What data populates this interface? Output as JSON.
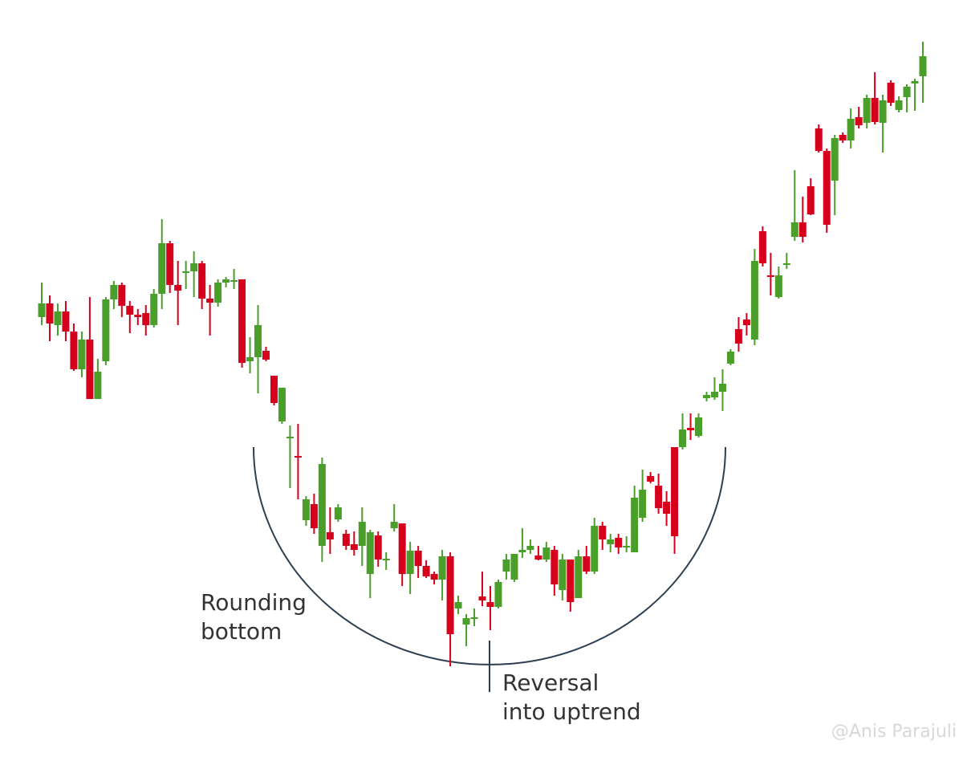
{
  "chart_data": {
    "type": "candlestick",
    "up_color": "#4a9e2a",
    "down_color": "#d6001c",
    "ylim": [
      0,
      938
    ],
    "open": [
      543,
      560,
      533,
      550,
      525,
      478,
      515,
      441,
      488,
      565,
      583,
      557,
      546,
      548,
      533,
      572,
      635,
      583,
      598,
      600,
      610,
      566,
      561,
      586,
      588,
      590,
      488,
      493,
      501,
      470,
      413,
      393,
      370,
      290,
      310,
      258,
      275,
      291,
      273,
      260,
      258,
      223,
      271,
      241,
      280,
      286,
      223,
      252,
      233,
      223,
      216,
      245,
      180,
      160,
      168,
      195,
      188,
      182,
      226,
      216,
      250,
      253,
      246,
      241,
      253,
      203,
      241,
      193,
      245,
      226,
      283,
      260,
      268,
      256,
      250,
      293,
      345,
      333,
      313,
      381,
      381,
      405,
      395,
      442,
      443,
      450,
      485,
      528,
      540,
      515,
      650,
      595,
      568,
      608,
      643,
      661,
      706,
      778,
      750,
      713,
      770,
      763,
      792,
      785,
      816,
      785,
      835,
      801,
      817,
      834,
      843
    ],
    "high": [
      586,
      570,
      560,
      563,
      535,
      525,
      568,
      491,
      568,
      588,
      586,
      563,
      553,
      558,
      578,
      665,
      638,
      613,
      613,
      625,
      613,
      583,
      590,
      593,
      603,
      590,
      518,
      558,
      506,
      470,
      455,
      408,
      410,
      320,
      323,
      368,
      306,
      310,
      278,
      276,
      306,
      278,
      276,
      250,
      310,
      286,
      263,
      258,
      240,
      226,
      253,
      250,
      196,
      173,
      180,
      226,
      208,
      216,
      248,
      248,
      280,
      266,
      258,
      263,
      258,
      248,
      241,
      253,
      258,
      293,
      288,
      273,
      273,
      270,
      333,
      353,
      350,
      348,
      326,
      381,
      423,
      423,
      423,
      450,
      468,
      478,
      503,
      543,
      548,
      628,
      656,
      623,
      606,
      623,
      726,
      693,
      716,
      783,
      753,
      770,
      773,
      803,
      805,
      820,
      848,
      820,
      838,
      818,
      833,
      840,
      886
    ],
    "low": [
      533,
      513,
      520,
      513,
      476,
      468,
      441,
      441,
      483,
      553,
      543,
      523,
      533,
      520,
      530,
      553,
      573,
      533,
      578,
      568,
      553,
      520,
      556,
      580,
      578,
      480,
      473,
      448,
      488,
      433,
      410,
      330,
      316,
      283,
      273,
      238,
      248,
      288,
      253,
      246,
      233,
      193,
      232,
      228,
      276,
      208,
      198,
      218,
      218,
      210,
      190,
      108,
      173,
      133,
      158,
      183,
      153,
      180,
      216,
      213,
      243,
      248,
      240,
      238,
      196,
      190,
      176,
      193,
      223,
      223,
      253,
      250,
      248,
      250,
      250,
      288,
      336,
      298,
      283,
      248,
      378,
      390,
      393,
      438,
      440,
      426,
      483,
      500,
      520,
      508,
      606,
      570,
      566,
      603,
      638,
      636,
      670,
      748,
      648,
      670,
      760,
      753,
      778,
      778,
      783,
      748,
      806,
      798,
      798,
      800,
      810
    ],
    "close": [
      560,
      535,
      550,
      525,
      478,
      515,
      441,
      475,
      565,
      583,
      557,
      546,
      543,
      533,
      572,
      635,
      583,
      576,
      600,
      610,
      566,
      561,
      586,
      590,
      589,
      486,
      493,
      533,
      490,
      436,
      455,
      394,
      368,
      316,
      280,
      360,
      266,
      306,
      258,
      253,
      288,
      275,
      241,
      242,
      288,
      223,
      252,
      233,
      220,
      216,
      245,
      148,
      188,
      168,
      169,
      190,
      182,
      213,
      241,
      248,
      253,
      258,
      241,
      256,
      210,
      241,
      188,
      245,
      226,
      283,
      266,
      266,
      256,
      258,
      318,
      328,
      338,
      305,
      298,
      270,
      403,
      402,
      418,
      446,
      450,
      460,
      500,
      510,
      533,
      613,
      610,
      593,
      595,
      610,
      661,
      643,
      671,
      750,
      658,
      766,
      763,
      790,
      782,
      816,
      786,
      813,
      810,
      813,
      830,
      837,
      868
    ],
    "annotations": [
      [
        "Rounding",
        "bottom"
      ],
      [
        "Reversal",
        "into uptrend"
      ]
    ],
    "watermark": "@Anis Parajuli"
  }
}
